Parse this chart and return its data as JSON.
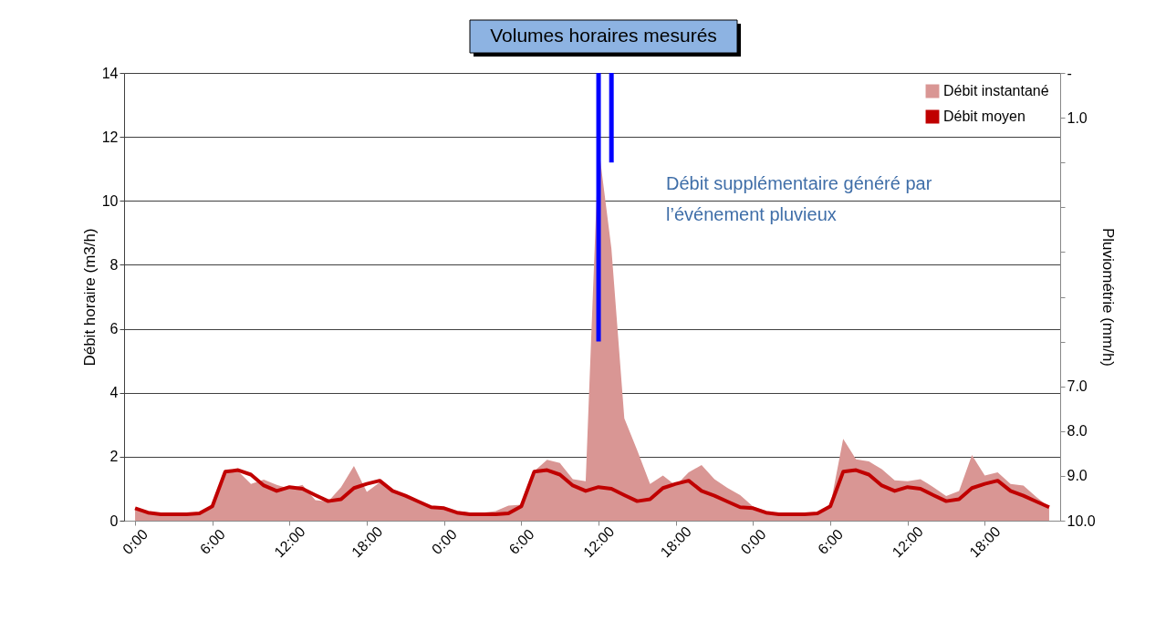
{
  "chart_data": {
    "type": "area",
    "title": "Volumes horaires mesurés",
    "ylabel": "Débit horaire (m3/h)",
    "y2label": "Pluviométrie (mm/h)",
    "categories": [
      "0:00",
      null,
      null,
      null,
      null,
      null,
      "6:00",
      null,
      null,
      null,
      null,
      null,
      "12:00",
      null,
      null,
      null,
      null,
      null,
      "18:00",
      null,
      null,
      null,
      null,
      null,
      "0:00",
      null,
      null,
      null,
      null,
      null,
      "6:00",
      null,
      null,
      null,
      null,
      null,
      "12:00",
      null,
      null,
      null,
      null,
      null,
      "18:00",
      null,
      null,
      null,
      null,
      null,
      "0:00",
      null,
      null,
      null,
      null,
      null,
      "6:00",
      null,
      null,
      null,
      null,
      null,
      "12:00",
      null,
      null,
      null,
      null,
      null,
      "18:00",
      null,
      null,
      null,
      null,
      null
    ],
    "series": [
      {
        "name": "Débit instantané",
        "color": "#d99694",
        "values": [
          0.35,
          0.25,
          0.2,
          0.2,
          0.2,
          0.23,
          0.4,
          1.5,
          1.55,
          1.15,
          1.28,
          1.12,
          1.0,
          1.12,
          0.64,
          0.6,
          1.05,
          1.71,
          0.9,
          1.2,
          0.9,
          0.75,
          0.6,
          0.38,
          0.35,
          0.3,
          0.25,
          0.25,
          0.3,
          0.47,
          0.5,
          1.55,
          1.9,
          1.8,
          1.3,
          1.23,
          11.7,
          8.5,
          3.2,
          2.2,
          1.15,
          1.41,
          1.1,
          1.51,
          1.74,
          1.3,
          1.03,
          0.8,
          0.44,
          0.3,
          0.2,
          0.2,
          0.2,
          0.26,
          0.46,
          2.56,
          1.92,
          1.85,
          1.61,
          1.26,
          1.23,
          1.3,
          1.05,
          0.77,
          0.93,
          2.05,
          1.41,
          1.51,
          1.15,
          1.1,
          0.74,
          0.42
        ]
      },
      {
        "name": "Débit moyen",
        "type": "line",
        "color": "#c00000",
        "values": [
          0.39,
          0.25,
          0.2,
          0.2,
          0.2,
          0.23,
          0.45,
          1.53,
          1.58,
          1.44,
          1.1,
          0.93,
          1.05,
          1.0,
          0.8,
          0.61,
          0.67,
          1.02,
          1.15,
          1.25,
          0.93,
          0.78,
          0.6,
          0.42,
          0.39,
          0.25,
          0.2,
          0.2,
          0.2,
          0.23,
          0.45,
          1.53,
          1.58,
          1.44,
          1.1,
          0.93,
          1.05,
          1.0,
          0.8,
          0.61,
          0.67,
          1.02,
          1.15,
          1.25,
          0.93,
          0.78,
          0.6,
          0.42,
          0.39,
          0.25,
          0.2,
          0.2,
          0.2,
          0.23,
          0.45,
          1.53,
          1.58,
          1.44,
          1.1,
          0.93,
          1.05,
          1.0,
          0.8,
          0.61,
          0.67,
          1.02,
          1.15,
          1.25,
          0.93,
          0.78,
          0.6,
          0.42
        ]
      },
      {
        "type": "bar",
        "axis": "y2",
        "color": "#0000ff",
        "values": [
          null,
          null,
          null,
          null,
          null,
          null,
          null,
          null,
          null,
          null,
          null,
          null,
          null,
          null,
          null,
          null,
          null,
          null,
          null,
          null,
          null,
          null,
          null,
          null,
          null,
          null,
          null,
          null,
          null,
          null,
          null,
          null,
          null,
          null,
          null,
          null,
          6.0,
          2.0,
          null,
          null,
          null,
          null,
          null,
          null,
          null,
          null,
          null,
          null,
          null,
          null,
          null,
          null,
          null,
          null,
          null,
          null,
          null,
          null,
          null,
          null,
          null,
          null,
          null,
          null,
          null,
          null,
          null,
          null,
          null,
          null,
          null,
          null
        ]
      }
    ],
    "ylim": [
      0,
      14
    ],
    "yticks": [
      0,
      2,
      4,
      6,
      8,
      10,
      12,
      14
    ],
    "y2lim": [
      10,
      0
    ],
    "y2ticks": [
      {
        "value": 0,
        "label": "-"
      },
      {
        "value": 1,
        "label": "1.0"
      },
      {
        "value": 2,
        "label": null
      },
      {
        "value": 3,
        "label": null
      },
      {
        "value": 4,
        "label": null
      },
      {
        "value": 5,
        "label": null
      },
      {
        "value": 6,
        "label": null
      },
      {
        "value": 7,
        "label": "7.0"
      },
      {
        "value": 8,
        "label": "8.0"
      },
      {
        "value": 9,
        "label": "9.0"
      },
      {
        "value": 10,
        "label": "10.0"
      }
    ],
    "grid": "y",
    "legend": "top right",
    "annotations": [
      "Débit supplémentaire généré par l’événement pluvieux"
    ]
  }
}
